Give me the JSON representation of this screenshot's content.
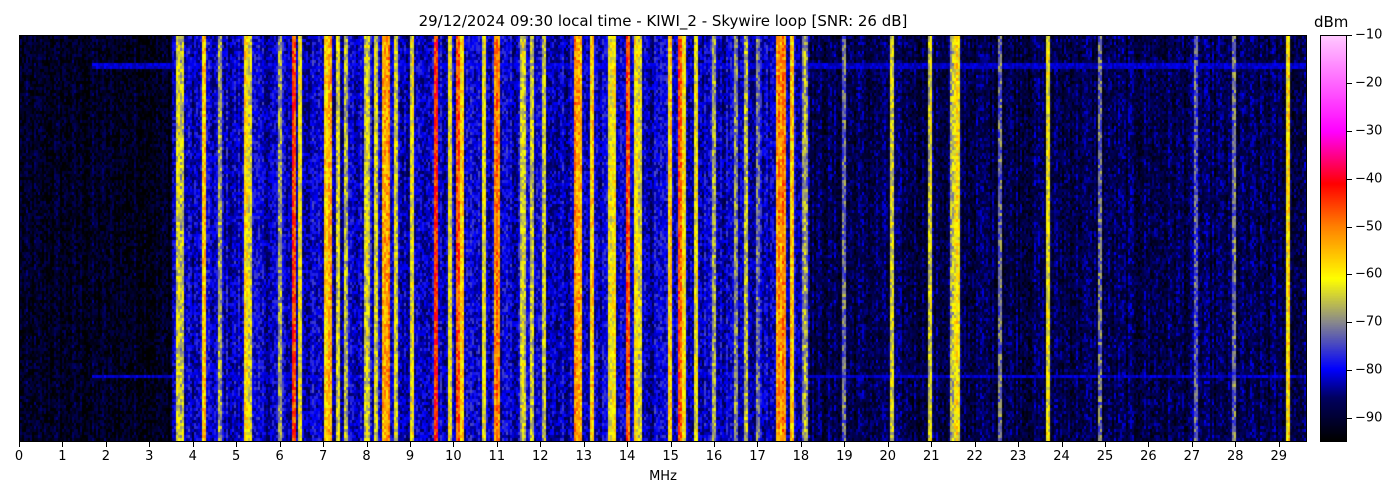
{
  "chart_data": {
    "type": "heatmap",
    "title": "29/12/2024 09:30 local time - KIWI_2 - Skywire loop [SNR: 26 dB]",
    "xlabel": "MHz",
    "ylabel": "",
    "xlim": [
      0,
      29.65
    ],
    "xticks": [
      0,
      1,
      2,
      3,
      4,
      5,
      6,
      7,
      8,
      9,
      10,
      11,
      12,
      13,
      14,
      15,
      16,
      17,
      18,
      19,
      20,
      21,
      22,
      23,
      24,
      25,
      26,
      27,
      28,
      29
    ],
    "colorbar": {
      "label": "dBm",
      "range": [
        -95,
        -10
      ],
      "ticks": [
        -10,
        -20,
        -30,
        -40,
        -50,
        -60,
        -70,
        -80,
        -90
      ],
      "colormap": [
        {
          "dbm": -95,
          "color": "#000000"
        },
        {
          "dbm": -86,
          "color": "#000060"
        },
        {
          "dbm": -80,
          "color": "#0000ff"
        },
        {
          "dbm": -70,
          "color": "#8a8a8a"
        },
        {
          "dbm": -61,
          "color": "#ffff00"
        },
        {
          "dbm": -50,
          "color": "#ff8000"
        },
        {
          "dbm": -41,
          "color": "#ff0000"
        },
        {
          "dbm": -30,
          "color": "#ff00ff"
        },
        {
          "dbm": -10,
          "color": "#ffc8ff"
        }
      ]
    },
    "noise_floor": [
      {
        "from_mhz": 0,
        "to_mhz": 3.5,
        "dbm": -92
      },
      {
        "from_mhz": 3.5,
        "to_mhz": 18.2,
        "dbm": -82
      },
      {
        "from_mhz": 18.2,
        "to_mhz": 29.65,
        "dbm": -88
      }
    ],
    "signals": [
      {
        "mhz": 3.65,
        "dbm": -62
      },
      {
        "mhz": 3.75,
        "dbm": -64
      },
      {
        "mhz": 4.25,
        "dbm": -55
      },
      {
        "mhz": 4.6,
        "dbm": -66
      },
      {
        "mhz": 5.2,
        "dbm": -57
      },
      {
        "mhz": 5.3,
        "dbm": -62
      },
      {
        "mhz": 6.0,
        "dbm": -66
      },
      {
        "mhz": 6.3,
        "dbm": -44
      },
      {
        "mhz": 6.45,
        "dbm": -60
      },
      {
        "mhz": 7.05,
        "dbm": -56
      },
      {
        "mhz": 7.15,
        "dbm": -52
      },
      {
        "mhz": 7.35,
        "dbm": -62
      },
      {
        "mhz": 7.5,
        "dbm": -65
      },
      {
        "mhz": 8.0,
        "dbm": -62
      },
      {
        "mhz": 8.2,
        "dbm": -62
      },
      {
        "mhz": 8.4,
        "dbm": -52
      },
      {
        "mhz": 8.5,
        "dbm": -50
      },
      {
        "mhz": 8.65,
        "dbm": -62
      },
      {
        "mhz": 9.05,
        "dbm": -60
      },
      {
        "mhz": 9.6,
        "dbm": -42
      },
      {
        "mhz": 9.9,
        "dbm": -60
      },
      {
        "mhz": 10.1,
        "dbm": -45
      },
      {
        "mhz": 10.2,
        "dbm": -56
      },
      {
        "mhz": 10.7,
        "dbm": -60
      },
      {
        "mhz": 11.0,
        "dbm": -48
      },
      {
        "mhz": 11.6,
        "dbm": -62
      },
      {
        "mhz": 11.8,
        "dbm": -63
      },
      {
        "mhz": 12.1,
        "dbm": -63
      },
      {
        "mhz": 12.8,
        "dbm": -50
      },
      {
        "mhz": 12.9,
        "dbm": -52
      },
      {
        "mhz": 13.2,
        "dbm": -56
      },
      {
        "mhz": 13.6,
        "dbm": -60
      },
      {
        "mhz": 13.7,
        "dbm": -58
      },
      {
        "mhz": 14.0,
        "dbm": -45
      },
      {
        "mhz": 14.2,
        "dbm": -58
      },
      {
        "mhz": 14.3,
        "dbm": -62
      },
      {
        "mhz": 15.0,
        "dbm": -56
      },
      {
        "mhz": 15.2,
        "dbm": -45
      },
      {
        "mhz": 15.3,
        "dbm": -58
      },
      {
        "mhz": 15.6,
        "dbm": -60
      },
      {
        "mhz": 16.0,
        "dbm": -66
      },
      {
        "mhz": 16.5,
        "dbm": -68
      },
      {
        "mhz": 16.75,
        "dbm": -64
      },
      {
        "mhz": 17.0,
        "dbm": -70
      },
      {
        "mhz": 17.5,
        "dbm": -50
      },
      {
        "mhz": 17.6,
        "dbm": -48
      },
      {
        "mhz": 17.8,
        "dbm": -55
      },
      {
        "mhz": 18.1,
        "dbm": -66
      },
      {
        "mhz": 19.0,
        "dbm": -70
      },
      {
        "mhz": 20.1,
        "dbm": -62
      },
      {
        "mhz": 21.0,
        "dbm": -62
      },
      {
        "mhz": 21.5,
        "dbm": -65
      },
      {
        "mhz": 21.6,
        "dbm": -58
      },
      {
        "mhz": 22.6,
        "dbm": -70
      },
      {
        "mhz": 23.7,
        "dbm": -60
      },
      {
        "mhz": 24.9,
        "dbm": -70
      },
      {
        "mhz": 27.1,
        "dbm": -72
      },
      {
        "mhz": 28.0,
        "dbm": -70
      },
      {
        "mhz": 29.25,
        "dbm": -58
      }
    ]
  }
}
